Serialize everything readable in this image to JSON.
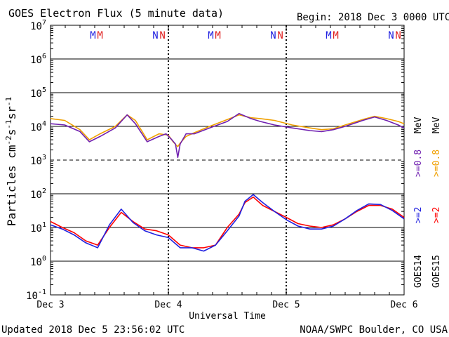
{
  "chart_data": {
    "type": "line",
    "title": "GOES Electron Flux (5 minute data)",
    "begin_label": "Begin: 2018 Dec 3 0000 UTC",
    "xlabel": "Universal Time",
    "ylabel_main": "Particles cm",
    "ylabel_sup1": "-2",
    "ylabel_mid1": "s",
    "ylabel_sup2": "-1",
    "ylabel_mid2": "sr",
    "ylabel_sup3": "-1",
    "updated_label": "Updated 2018 Dec  5 23:56:02 UTC",
    "credit_label": "NOAA/SWPC Boulder, CO USA",
    "x_tick_labels": [
      "Dec 3",
      "Dec 4",
      "Dec 5",
      "Dec 6"
    ],
    "xlim_days": [
      0,
      3
    ],
    "y_scale": "log",
    "ylim": [
      0.1,
      10000000
    ],
    "y_tick_labels": [
      {
        "value": 10000000,
        "base": "10",
        "exp": "7"
      },
      {
        "value": 1000000,
        "base": "10",
        "exp": "6"
      },
      {
        "value": 100000,
        "base": "10",
        "exp": "5"
      },
      {
        "value": 10000,
        "base": "10",
        "exp": "4"
      },
      {
        "value": 1000,
        "base": "10",
        "exp": "3"
      },
      {
        "value": 100,
        "base": "10",
        "exp": "2"
      },
      {
        "value": 10,
        "base": "10",
        "exp": "1"
      },
      {
        "value": 1,
        "base": "10",
        "exp": "0"
      },
      {
        "value": 0.1,
        "base": "10",
        "exp": "-1"
      }
    ],
    "mn_markers": [
      {
        "day": 0.36,
        "text": "M",
        "color": "#2020e0"
      },
      {
        "day": 0.42,
        "text": "M",
        "color": "#e02020"
      },
      {
        "day": 0.89,
        "text": "N",
        "color": "#2020e0"
      },
      {
        "day": 0.95,
        "text": "N",
        "color": "#e02020"
      },
      {
        "day": 1.36,
        "text": "M",
        "color": "#2020e0"
      },
      {
        "day": 1.42,
        "text": "M",
        "color": "#e02020"
      },
      {
        "day": 1.89,
        "text": "N",
        "color": "#2020e0"
      },
      {
        "day": 1.95,
        "text": "N",
        "color": "#e02020"
      },
      {
        "day": 2.36,
        "text": "M",
        "color": "#2020e0"
      },
      {
        "day": 2.42,
        "text": "M",
        "color": "#e02020"
      },
      {
        "day": 2.89,
        "text": "N",
        "color": "#2020e0"
      },
      {
        "day": 2.95,
        "text": "N",
        "color": "#e02020"
      }
    ],
    "legend": {
      "high_energy": {
        "unit": "MeV",
        "goes15": {
          "text": ">=0.8",
          "color": "#f0a000"
        },
        "goes14": {
          "text": ">=0.8",
          "color": "#7020b0"
        }
      },
      "low_energy": {
        "unit": "MeV",
        "goes15": {
          "text": ">=2",
          "color": "#ff0000"
        },
        "goes14": {
          "text": ">=2",
          "color": "#2020e0"
        }
      },
      "sat_goes14": "GOES14",
      "sat_goes15": "GOES15"
    },
    "series": [
      {
        "name": ">=0.8 MeV GOES15",
        "color": "#f0a000",
        "x": [
          0,
          0.12,
          0.25,
          0.33,
          0.42,
          0.55,
          0.65,
          0.72,
          0.82,
          0.92,
          1.0,
          1.04,
          1.08,
          1.1,
          1.15,
          1.22,
          1.35,
          1.5,
          1.6,
          1.7,
          1.78,
          1.9,
          2.05,
          2.2,
          2.3,
          2.4,
          2.5,
          2.65,
          2.75,
          2.85,
          2.95,
          3.0
        ],
        "y": [
          17000,
          15000,
          8000,
          4000,
          6000,
          10000,
          22000,
          15000,
          4000,
          6000,
          5500,
          3500,
          2500,
          3200,
          5000,
          6500,
          10000,
          16000,
          22000,
          18000,
          17000,
          15000,
          11000,
          9000,
          8000,
          8500,
          11000,
          16000,
          20000,
          17000,
          14000,
          12000
        ]
      },
      {
        "name": ">=0.8 MeV GOES14",
        "color": "#7020b0",
        "x": [
          0,
          0.12,
          0.25,
          0.33,
          0.42,
          0.55,
          0.65,
          0.72,
          0.82,
          0.92,
          0.98,
          1.03,
          1.06,
          1.08,
          1.1,
          1.15,
          1.22,
          1.35,
          1.5,
          1.6,
          1.7,
          1.78,
          1.9,
          2.05,
          2.2,
          2.3,
          2.4,
          2.5,
          2.65,
          2.75,
          2.85,
          2.95,
          3.0
        ],
        "y": [
          12000,
          11000,
          7000,
          3500,
          5000,
          9000,
          22000,
          12000,
          3500,
          5000,
          6000,
          4000,
          3000,
          1200,
          3000,
          6000,
          6000,
          9000,
          14000,
          24000,
          17000,
          14000,
          11000,
          9000,
          7500,
          7000,
          8000,
          10000,
          15000,
          19000,
          15000,
          11000,
          9000
        ]
      },
      {
        "name": ">=2 MeV GOES15",
        "color": "#ff0000",
        "x": [
          0,
          0.1,
          0.2,
          0.3,
          0.4,
          0.5,
          0.6,
          0.7,
          0.8,
          0.9,
          1.0,
          1.1,
          1.2,
          1.3,
          1.4,
          1.5,
          1.6,
          1.65,
          1.72,
          1.8,
          1.9,
          2.0,
          2.1,
          2.2,
          2.3,
          2.4,
          2.5,
          2.6,
          2.7,
          2.8,
          2.9,
          3.0
        ],
        "y": [
          15,
          10,
          7,
          4,
          3,
          10,
          28,
          15,
          9,
          8,
          6,
          3,
          2.5,
          2.5,
          3,
          10,
          25,
          55,
          80,
          45,
          30,
          20,
          13,
          11,
          10,
          12,
          18,
          30,
          45,
          45,
          35,
          20
        ]
      },
      {
        "name": ">=2 MeV GOES14",
        "color": "#2020e0",
        "x": [
          0,
          0.1,
          0.2,
          0.3,
          0.4,
          0.5,
          0.6,
          0.7,
          0.8,
          0.9,
          1.0,
          1.1,
          1.2,
          1.3,
          1.4,
          1.5,
          1.6,
          1.65,
          1.72,
          1.8,
          1.9,
          2.0,
          2.1,
          2.2,
          2.3,
          2.4,
          2.5,
          2.6,
          2.7,
          2.8,
          2.9,
          3.0
        ],
        "y": [
          12,
          9,
          6,
          3.5,
          2.5,
          12,
          35,
          14,
          8,
          6,
          5,
          2.5,
          2.5,
          2,
          3,
          8,
          22,
          60,
          95,
          55,
          30,
          17,
          11,
          9,
          9,
          11,
          18,
          32,
          50,
          48,
          32,
          18
        ]
      }
    ]
  }
}
